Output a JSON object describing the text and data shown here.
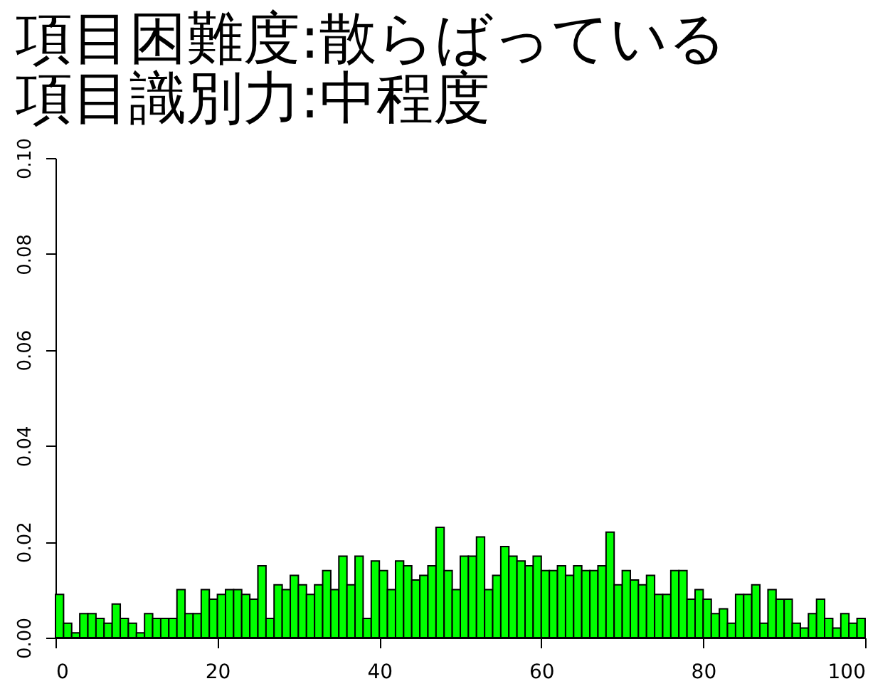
{
  "chart_data": {
    "type": "histogram",
    "title": [
      "項目困難度:散らばっている",
      "項目識別力:中程度"
    ],
    "bins": [
      0,
      1,
      2,
      3,
      4,
      5,
      6,
      7,
      8,
      9,
      10,
      11,
      12,
      13,
      14,
      15,
      16,
      17,
      18,
      19,
      20,
      21,
      22,
      23,
      24,
      25,
      26,
      27,
      28,
      29,
      30,
      31,
      32,
      33,
      34,
      35,
      36,
      37,
      38,
      39,
      40,
      41,
      42,
      43,
      44,
      45,
      46,
      47,
      48,
      49,
      50,
      51,
      52,
      53,
      54,
      55,
      56,
      57,
      58,
      59,
      60,
      61,
      62,
      63,
      64,
      65,
      66,
      67,
      68,
      69,
      70,
      71,
      72,
      73,
      74,
      75,
      76,
      77,
      78,
      79,
      80,
      81,
      82,
      83,
      84,
      85,
      86,
      87,
      88,
      89,
      90,
      91,
      92,
      93,
      94,
      95,
      96,
      97,
      98,
      99,
      100
    ],
    "values": [
      0.009,
      0.003,
      0.001,
      0.005,
      0.005,
      0.004,
      0.003,
      0.007,
      0.004,
      0.003,
      0.001,
      0.005,
      0.004,
      0.004,
      0.004,
      0.01,
      0.005,
      0.005,
      0.01,
      0.008,
      0.009,
      0.01,
      0.01,
      0.009,
      0.008,
      0.015,
      0.004,
      0.011,
      0.01,
      0.013,
      0.011,
      0.009,
      0.011,
      0.014,
      0.01,
      0.017,
      0.011,
      0.017,
      0.004,
      0.016,
      0.014,
      0.01,
      0.016,
      0.015,
      0.012,
      0.013,
      0.015,
      0.023,
      0.014,
      0.01,
      0.017,
      0.017,
      0.021,
      0.01,
      0.013,
      0.019,
      0.017,
      0.016,
      0.015,
      0.017,
      0.014,
      0.014,
      0.015,
      0.013,
      0.015,
      0.014,
      0.014,
      0.015,
      0.022,
      0.011,
      0.014,
      0.012,
      0.011,
      0.013,
      0.009,
      0.009,
      0.014,
      0.014,
      0.008,
      0.01,
      0.008,
      0.005,
      0.006,
      0.003,
      0.009,
      0.009,
      0.011,
      0.003,
      0.01,
      0.008,
      0.008,
      0.003,
      0.002,
      0.005,
      0.008,
      0.004,
      0.002,
      0.005,
      0.003,
      0.004
    ],
    "color": "#00ff00",
    "xlim": [
      0,
      100
    ],
    "xticks": [
      0,
      20,
      40,
      60,
      80,
      100
    ],
    "ylim": [
      0,
      0.1
    ],
    "yticks": [
      {
        "value": 0,
        "label": "0.00"
      },
      {
        "value": 0.02,
        "label": "0.02"
      },
      {
        "value": 0.04,
        "label": "0.04"
      },
      {
        "value": 0.06,
        "label": "0.06"
      },
      {
        "value": 0.08,
        "label": "0.08"
      },
      {
        "value": 0.1,
        "label": "0.10"
      }
    ],
    "grid": false
  }
}
